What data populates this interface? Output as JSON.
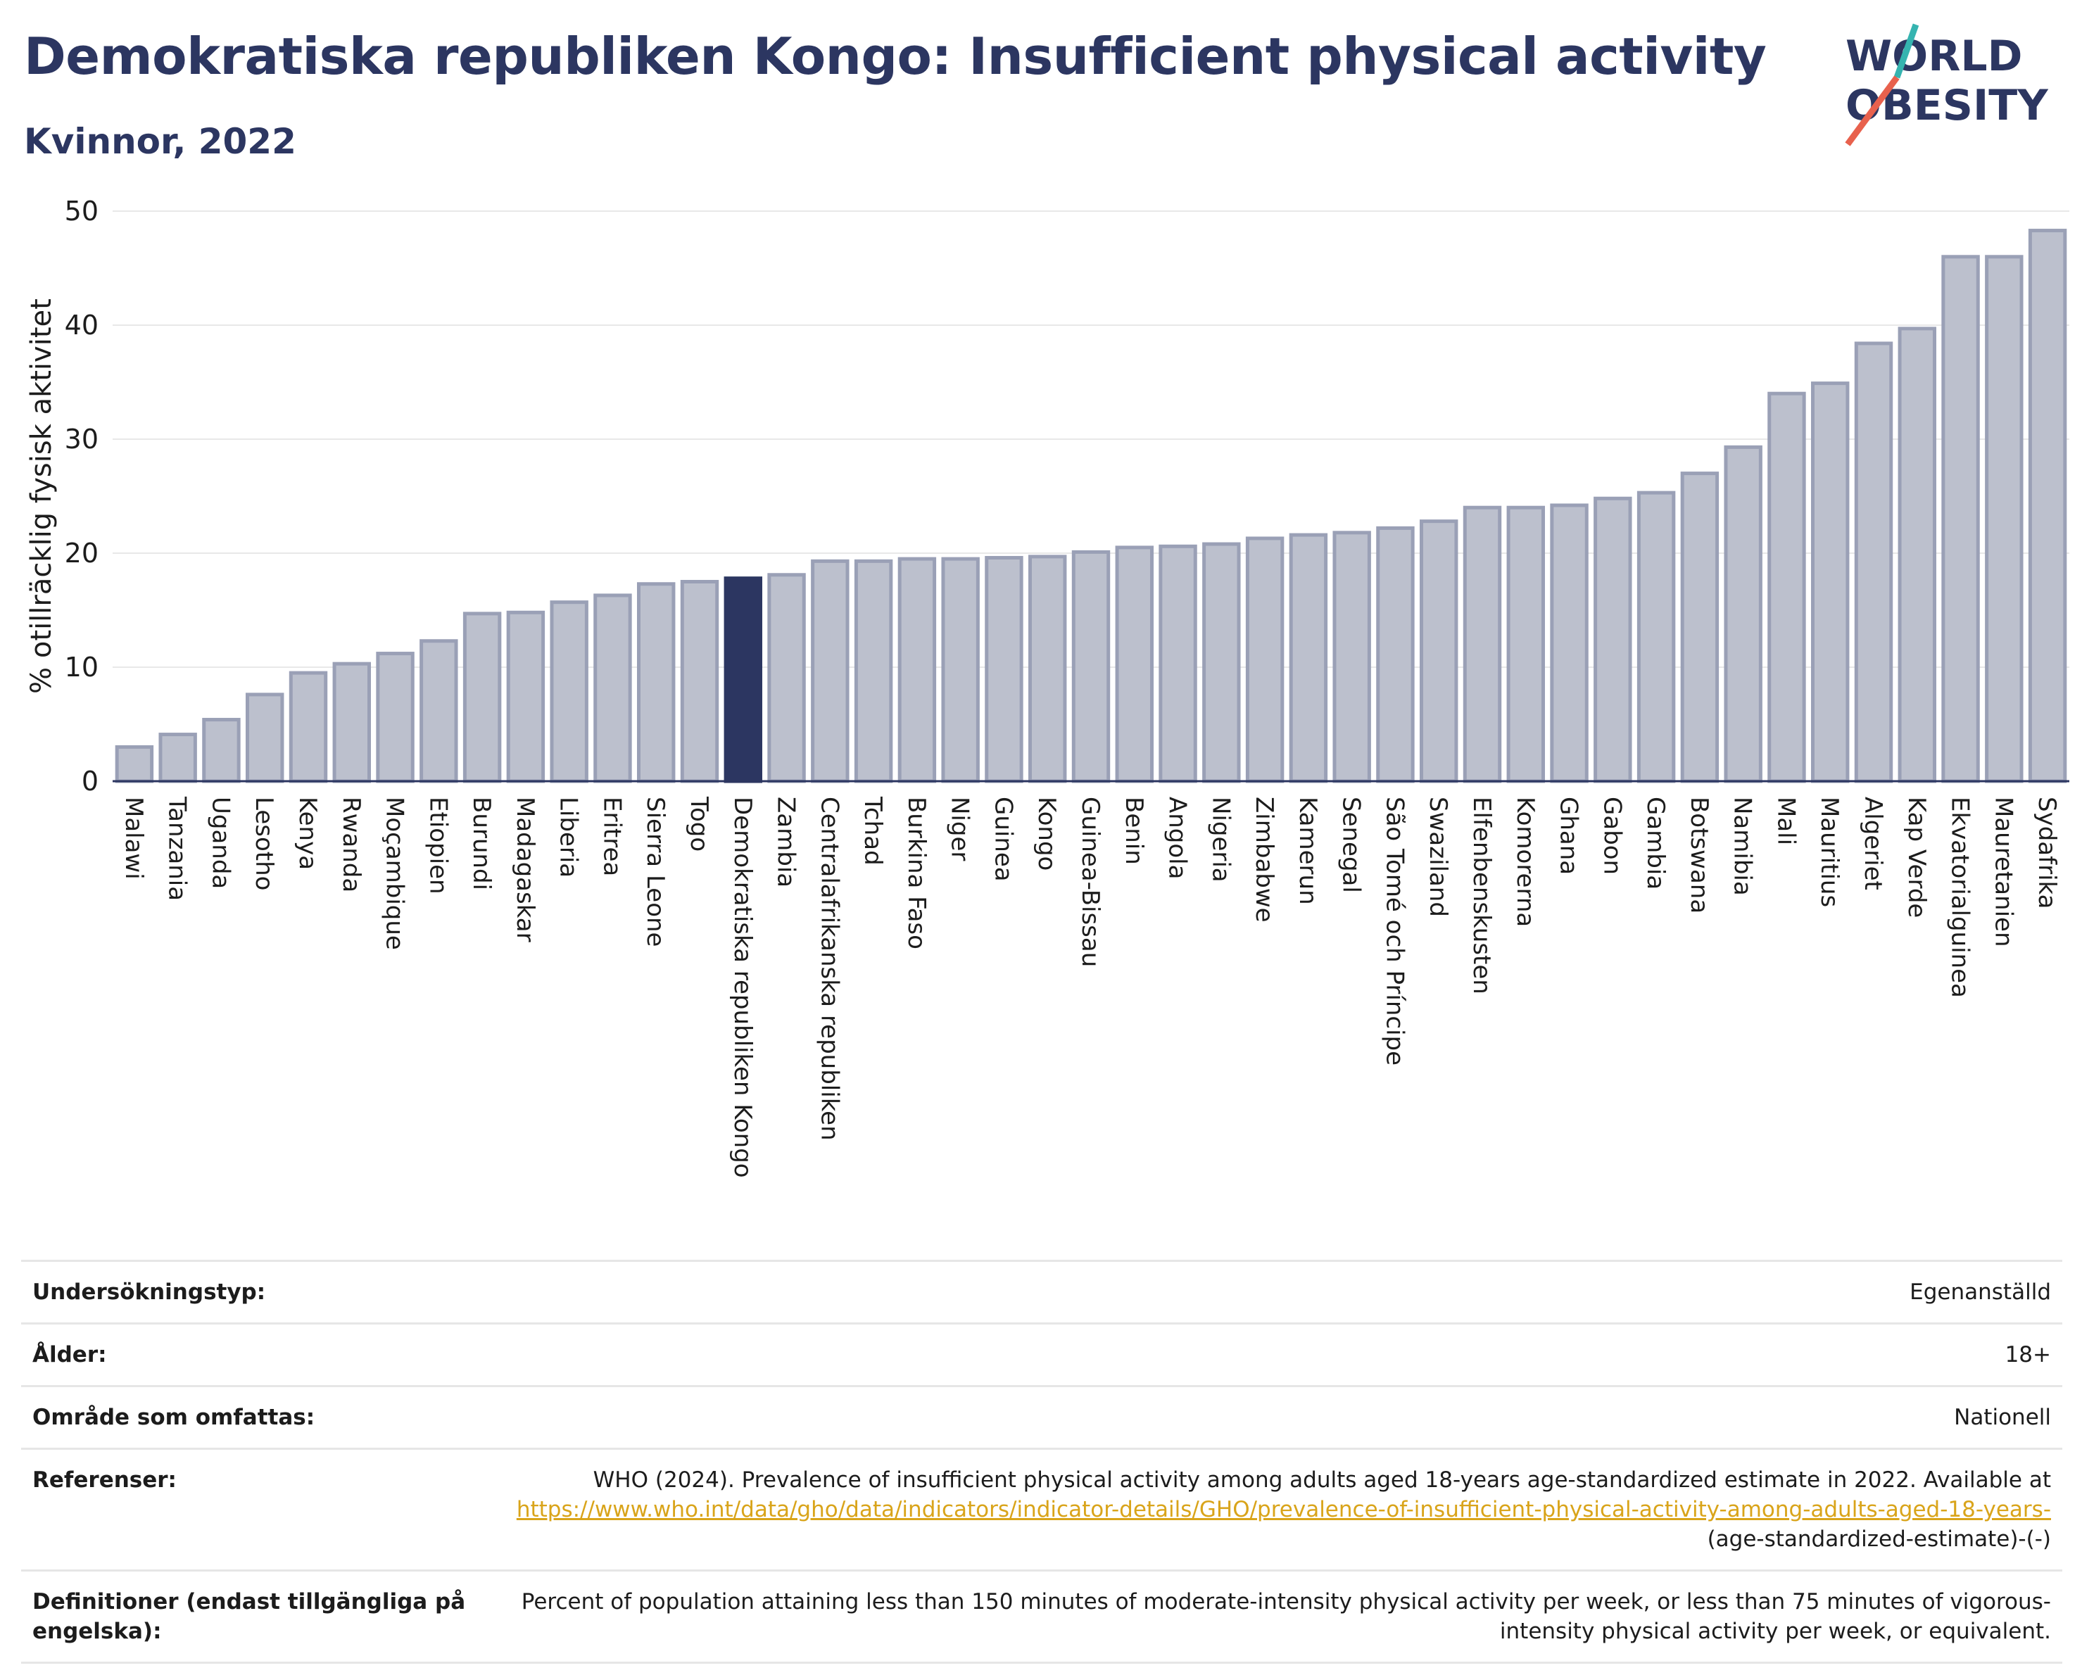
{
  "header": {
    "title": "Demokratiska republiken Kongo: Insufficient physical activity",
    "subtitle": "Kvinnor, 2022"
  },
  "logo": {
    "line1": "WORLD",
    "line2": "OBESITY"
  },
  "colors": {
    "title": "#2c3661",
    "bar": "#bcc0cd",
    "bar_border": "#9aa0b6",
    "bar_highlight": "#2c3661",
    "link": "#d9a41a",
    "logo_slash_top": "#35b4b0",
    "logo_slash_bottom": "#e8614d"
  },
  "chart_data": {
    "type": "bar",
    "title": "Demokratiska republiken Kongo: Insufficient physical activity",
    "ylabel": "% otillräcklig fysisk aktivitet",
    "ylim": [
      0,
      50
    ],
    "yticks": [
      0,
      10,
      20,
      30,
      40,
      50
    ],
    "grid": true,
    "highlight": "Demokratiska republiken Kongo",
    "categories": [
      "Malawi",
      "Tanzania",
      "Uganda",
      "Lesotho",
      "Kenya",
      "Rwanda",
      "Moçambique",
      "Etiopien",
      "Burundi",
      "Madagaskar",
      "Liberia",
      "Eritrea",
      "Sierra Leone",
      "Togo",
      "Demokratiska republiken Kongo",
      "Zambia",
      "Centralafrikanska republiken",
      "Tchad",
      "Burkina Faso",
      "Niger",
      "Guinea",
      "Kongo",
      "Guinea-Bissau",
      "Benin",
      "Angola",
      "Nigeria",
      "Zimbabwe",
      "Kamerun",
      "Senegal",
      "São Tomé och Príncipe",
      "Swaziland",
      "Elfenbenskusten",
      "Komorerna",
      "Ghana",
      "Gabon",
      "Gambia",
      "Botswana",
      "Namibia",
      "Mali",
      "Mauritius",
      "Algeriet",
      "Kap Verde",
      "Ekvatorialguinea",
      "Mauretanien",
      "Sydafrika"
    ],
    "values": [
      3.0,
      4.1,
      5.4,
      7.6,
      9.5,
      10.3,
      11.2,
      12.3,
      14.7,
      14.8,
      15.7,
      16.3,
      17.3,
      17.5,
      17.8,
      18.1,
      19.3,
      19.3,
      19.5,
      19.5,
      19.6,
      19.7,
      20.1,
      20.5,
      20.6,
      20.8,
      21.3,
      21.6,
      21.8,
      22.2,
      22.8,
      24.0,
      24.0,
      24.2,
      24.8,
      25.3,
      27.0,
      29.3,
      34.0,
      34.9,
      38.4,
      39.7,
      46.0,
      46.0,
      48.3
    ]
  },
  "info": {
    "rows": [
      {
        "key": "Undersökningstyp:",
        "value": "Egenanställd"
      },
      {
        "key": "Ålder:",
        "value": "18+"
      },
      {
        "key": "Område som omfattas:",
        "value": "Nationell"
      }
    ],
    "references": {
      "key": "Referenser:",
      "text": "WHO (2024). Prevalence of insufficient physical activity among adults aged 18-years age-standardized estimate in 2022. Available at",
      "link": "https://www.who.int/data/gho/data/indicators/indicator-details/GHO/prevalence-of-insufficient-physical-activity-among-adults-aged-18-years-",
      "tail": "(age-standardized-estimate)-(-)"
    },
    "definitions": {
      "key": "Definitioner (endast tillgängliga på engelska):",
      "value": "Percent of population attaining less than 150 minutes of moderate-intensity physical activity per week, or less than 75 minutes of vigorous-intensity physical activity per week, or equivalent."
    }
  }
}
